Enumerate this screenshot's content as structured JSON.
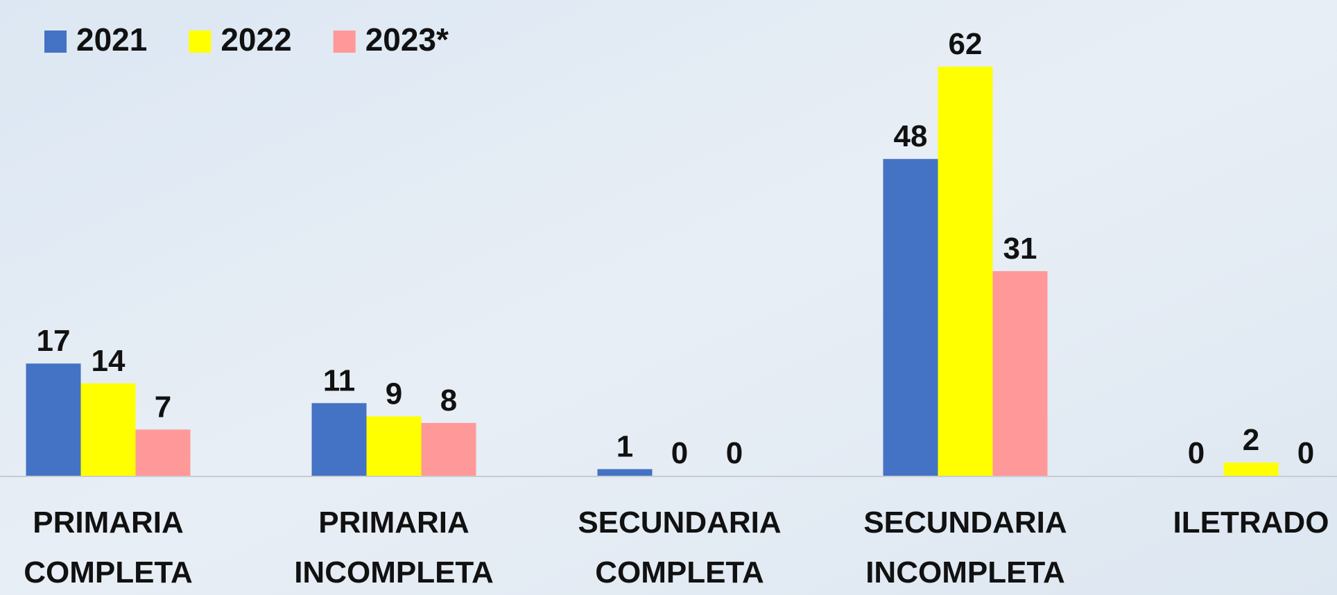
{
  "chart_data": {
    "type": "bar",
    "categories": [
      "PRIMARIA COMPLETA",
      "PRIMARIA INCOMPLETA",
      "SECUNDARIA COMPLETA",
      "SECUNDARIA INCOMPLETA",
      "ILETRADO"
    ],
    "series": [
      {
        "name": "2021",
        "color": "#4472c4",
        "values": [
          17,
          11,
          1,
          48,
          0
        ]
      },
      {
        "name": "2022",
        "color": "#ffff00",
        "values": [
          14,
          9,
          0,
          62,
          2
        ]
      },
      {
        "name": "2023*",
        "color": "#ff9999",
        "values": [
          7,
          8,
          0,
          31,
          0
        ]
      }
    ],
    "legend": "top-left"
  }
}
